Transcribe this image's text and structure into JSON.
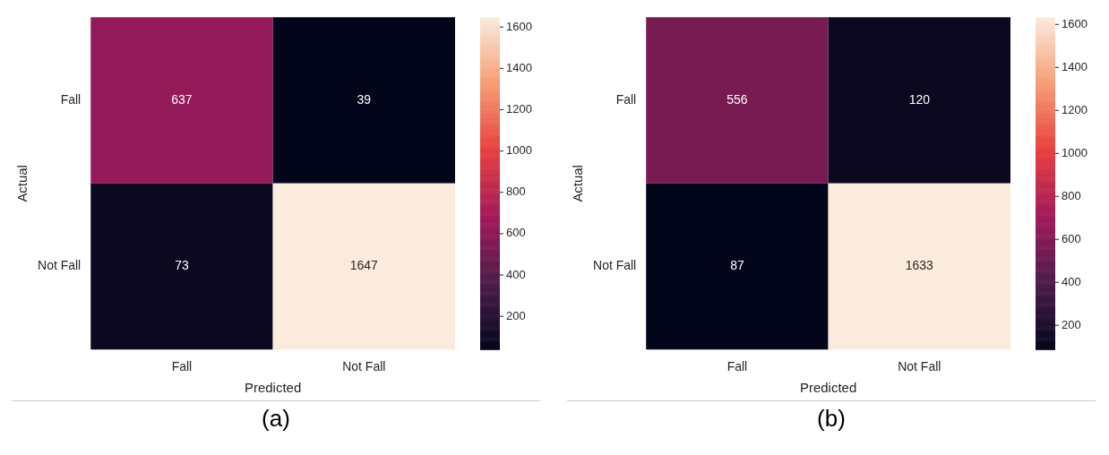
{
  "chart_data": [
    {
      "type": "heatmap",
      "xlabel": "Predicted",
      "ylabel": "Actual",
      "categories": [
        "Fall",
        "Not Fall"
      ],
      "y_categories": [
        "Fall",
        "Not Fall"
      ],
      "cells": [
        [
          637,
          39
        ],
        [
          73,
          1647
        ]
      ],
      "data_labels": true,
      "clim": [
        39,
        1647
      ],
      "cticks": [
        200,
        400,
        600,
        800,
        1000,
        1200,
        1400,
        1600
      ],
      "annotations": [
        "(a)"
      ]
    },
    {
      "type": "heatmap",
      "xlabel": "Predicted",
      "ylabel": "Actual",
      "categories": [
        "Fall",
        "Not Fall"
      ],
      "y_categories": [
        "Fall",
        "Not Fall"
      ],
      "cells": [
        [
          556,
          120
        ],
        [
          87,
          1633
        ]
      ],
      "data_labels": true,
      "clim": [
        87,
        1633
      ],
      "cticks": [
        200,
        400,
        600,
        800,
        1000,
        1200,
        1400,
        1600
      ],
      "annotations": [
        "(b)"
      ]
    }
  ]
}
